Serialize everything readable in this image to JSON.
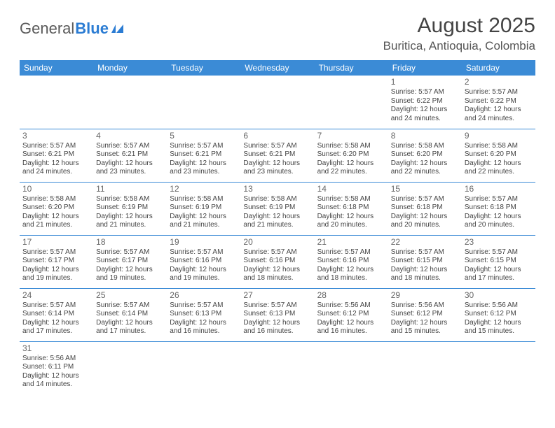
{
  "logo": {
    "text_general": "General",
    "text_blue": "Blue"
  },
  "header": {
    "month_title": "August 2025",
    "location": "Buritica, Antioquia, Colombia"
  },
  "colors": {
    "header_bg": "#3b8bd6",
    "header_text": "#ffffff",
    "cell_border": "#3b8bd6",
    "text": "#444444"
  },
  "calendar": {
    "day_headers": [
      "Sunday",
      "Monday",
      "Tuesday",
      "Wednesday",
      "Thursday",
      "Friday",
      "Saturday"
    ],
    "weeks": [
      [
        null,
        null,
        null,
        null,
        null,
        {
          "n": "1",
          "sr": "5:57 AM",
          "ss": "6:22 PM",
          "dl": "12 hours and 24 minutes."
        },
        {
          "n": "2",
          "sr": "5:57 AM",
          "ss": "6:22 PM",
          "dl": "12 hours and 24 minutes."
        }
      ],
      [
        {
          "n": "3",
          "sr": "5:57 AM",
          "ss": "6:21 PM",
          "dl": "12 hours and 24 minutes."
        },
        {
          "n": "4",
          "sr": "5:57 AM",
          "ss": "6:21 PM",
          "dl": "12 hours and 23 minutes."
        },
        {
          "n": "5",
          "sr": "5:57 AM",
          "ss": "6:21 PM",
          "dl": "12 hours and 23 minutes."
        },
        {
          "n": "6",
          "sr": "5:57 AM",
          "ss": "6:21 PM",
          "dl": "12 hours and 23 minutes."
        },
        {
          "n": "7",
          "sr": "5:58 AM",
          "ss": "6:20 PM",
          "dl": "12 hours and 22 minutes."
        },
        {
          "n": "8",
          "sr": "5:58 AM",
          "ss": "6:20 PM",
          "dl": "12 hours and 22 minutes."
        },
        {
          "n": "9",
          "sr": "5:58 AM",
          "ss": "6:20 PM",
          "dl": "12 hours and 22 minutes."
        }
      ],
      [
        {
          "n": "10",
          "sr": "5:58 AM",
          "ss": "6:20 PM",
          "dl": "12 hours and 21 minutes."
        },
        {
          "n": "11",
          "sr": "5:58 AM",
          "ss": "6:19 PM",
          "dl": "12 hours and 21 minutes."
        },
        {
          "n": "12",
          "sr": "5:58 AM",
          "ss": "6:19 PM",
          "dl": "12 hours and 21 minutes."
        },
        {
          "n": "13",
          "sr": "5:58 AM",
          "ss": "6:19 PM",
          "dl": "12 hours and 21 minutes."
        },
        {
          "n": "14",
          "sr": "5:58 AM",
          "ss": "6:18 PM",
          "dl": "12 hours and 20 minutes."
        },
        {
          "n": "15",
          "sr": "5:57 AM",
          "ss": "6:18 PM",
          "dl": "12 hours and 20 minutes."
        },
        {
          "n": "16",
          "sr": "5:57 AM",
          "ss": "6:18 PM",
          "dl": "12 hours and 20 minutes."
        }
      ],
      [
        {
          "n": "17",
          "sr": "5:57 AM",
          "ss": "6:17 PM",
          "dl": "12 hours and 19 minutes."
        },
        {
          "n": "18",
          "sr": "5:57 AM",
          "ss": "6:17 PM",
          "dl": "12 hours and 19 minutes."
        },
        {
          "n": "19",
          "sr": "5:57 AM",
          "ss": "6:16 PM",
          "dl": "12 hours and 19 minutes."
        },
        {
          "n": "20",
          "sr": "5:57 AM",
          "ss": "6:16 PM",
          "dl": "12 hours and 18 minutes."
        },
        {
          "n": "21",
          "sr": "5:57 AM",
          "ss": "6:16 PM",
          "dl": "12 hours and 18 minutes."
        },
        {
          "n": "22",
          "sr": "5:57 AM",
          "ss": "6:15 PM",
          "dl": "12 hours and 18 minutes."
        },
        {
          "n": "23",
          "sr": "5:57 AM",
          "ss": "6:15 PM",
          "dl": "12 hours and 17 minutes."
        }
      ],
      [
        {
          "n": "24",
          "sr": "5:57 AM",
          "ss": "6:14 PM",
          "dl": "12 hours and 17 minutes."
        },
        {
          "n": "25",
          "sr": "5:57 AM",
          "ss": "6:14 PM",
          "dl": "12 hours and 17 minutes."
        },
        {
          "n": "26",
          "sr": "5:57 AM",
          "ss": "6:13 PM",
          "dl": "12 hours and 16 minutes."
        },
        {
          "n": "27",
          "sr": "5:57 AM",
          "ss": "6:13 PM",
          "dl": "12 hours and 16 minutes."
        },
        {
          "n": "28",
          "sr": "5:56 AM",
          "ss": "6:12 PM",
          "dl": "12 hours and 16 minutes."
        },
        {
          "n": "29",
          "sr": "5:56 AM",
          "ss": "6:12 PM",
          "dl": "12 hours and 15 minutes."
        },
        {
          "n": "30",
          "sr": "5:56 AM",
          "ss": "6:12 PM",
          "dl": "12 hours and 15 minutes."
        }
      ],
      [
        {
          "n": "31",
          "sr": "5:56 AM",
          "ss": "6:11 PM",
          "dl": "12 hours and 14 minutes."
        },
        null,
        null,
        null,
        null,
        null,
        null
      ]
    ],
    "labels": {
      "sunrise_prefix": "Sunrise: ",
      "sunset_prefix": "Sunset: ",
      "daylight_prefix": "Daylight: "
    }
  }
}
